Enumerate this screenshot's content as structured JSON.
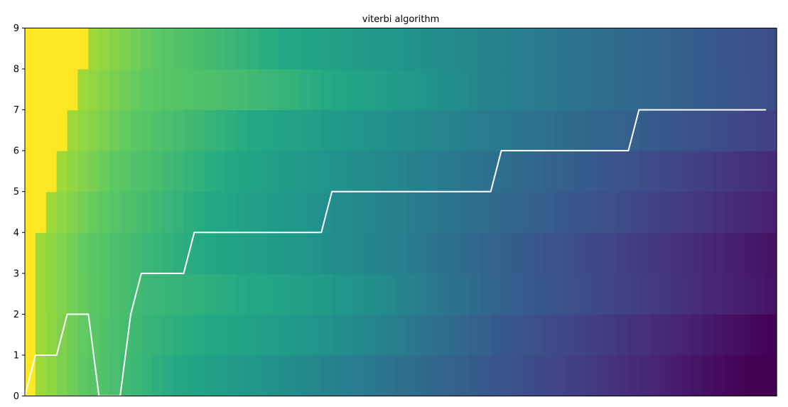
{
  "chart_data": {
    "type": "heatmap",
    "title": "viterbi algorithm",
    "xlabel": "",
    "ylabel": "",
    "xlim": [
      0,
      71
    ],
    "ylim": [
      0,
      9
    ],
    "y_ticks": [
      "0",
      "1",
      "2",
      "3",
      "4",
      "5",
      "6",
      "7",
      "8",
      "9"
    ],
    "x_ticks_visible": false,
    "colormap": "viridis",
    "n_columns": 71,
    "n_rows": 9,
    "heatmap_rows": [
      {
        "state": 0,
        "yellow_cols": 1,
        "decay": 0.0139,
        "bump": 0.0
      },
      {
        "state": 1,
        "yellow_cols": 1,
        "decay": 0.0134,
        "bump": 0.06
      },
      {
        "state": 2,
        "yellow_cols": 1,
        "decay": 0.0125,
        "bump": 0.08
      },
      {
        "state": 3,
        "yellow_cols": 1,
        "decay": 0.0126,
        "bump": 0.03
      },
      {
        "state": 4,
        "yellow_cols": 2,
        "decay": 0.012,
        "bump": 0.0
      },
      {
        "state": 5,
        "yellow_cols": 3,
        "decay": 0.0116,
        "bump": 0.0
      },
      {
        "state": 6,
        "yellow_cols": 4,
        "decay": 0.0105,
        "bump": 0.0
      },
      {
        "state": 7,
        "yellow_cols": 5,
        "decay": 0.0098,
        "bump": 0.05
      },
      {
        "state": 8,
        "yellow_cols": 6,
        "decay": 0.01,
        "bump": 0.0
      }
    ],
    "series": [
      {
        "color": "#ffffff",
        "x": [
          0,
          1,
          2,
          3,
          4,
          5,
          6,
          7,
          8,
          9,
          10,
          11,
          12,
          13,
          14,
          15,
          16,
          17,
          18,
          19,
          20,
          21,
          22,
          23,
          24,
          25,
          26,
          27,
          28,
          29,
          30,
          31,
          32,
          33,
          34,
          35,
          36,
          37,
          38,
          39,
          40,
          41,
          42,
          43,
          44,
          45,
          46,
          47,
          48,
          49,
          50,
          51,
          52,
          53,
          54,
          55,
          56,
          57,
          58,
          59,
          60,
          61,
          62,
          63,
          64,
          65,
          66,
          67,
          68,
          69,
          70
        ],
        "y": [
          0,
          1,
          1,
          1,
          2,
          2,
          2,
          0,
          0,
          0,
          2,
          3,
          3,
          3,
          3,
          3,
          4,
          4,
          4,
          4,
          4,
          4,
          4,
          4,
          4,
          4,
          4,
          4,
          4,
          5,
          5,
          5,
          5,
          5,
          5,
          5,
          5,
          5,
          5,
          5,
          5,
          5,
          5,
          5,
          5,
          6,
          6,
          6,
          6,
          6,
          6,
          6,
          6,
          6,
          6,
          6,
          6,
          6,
          7,
          7,
          7,
          7,
          7,
          7,
          7,
          7,
          7,
          7,
          7,
          7,
          7
        ]
      }
    ]
  }
}
